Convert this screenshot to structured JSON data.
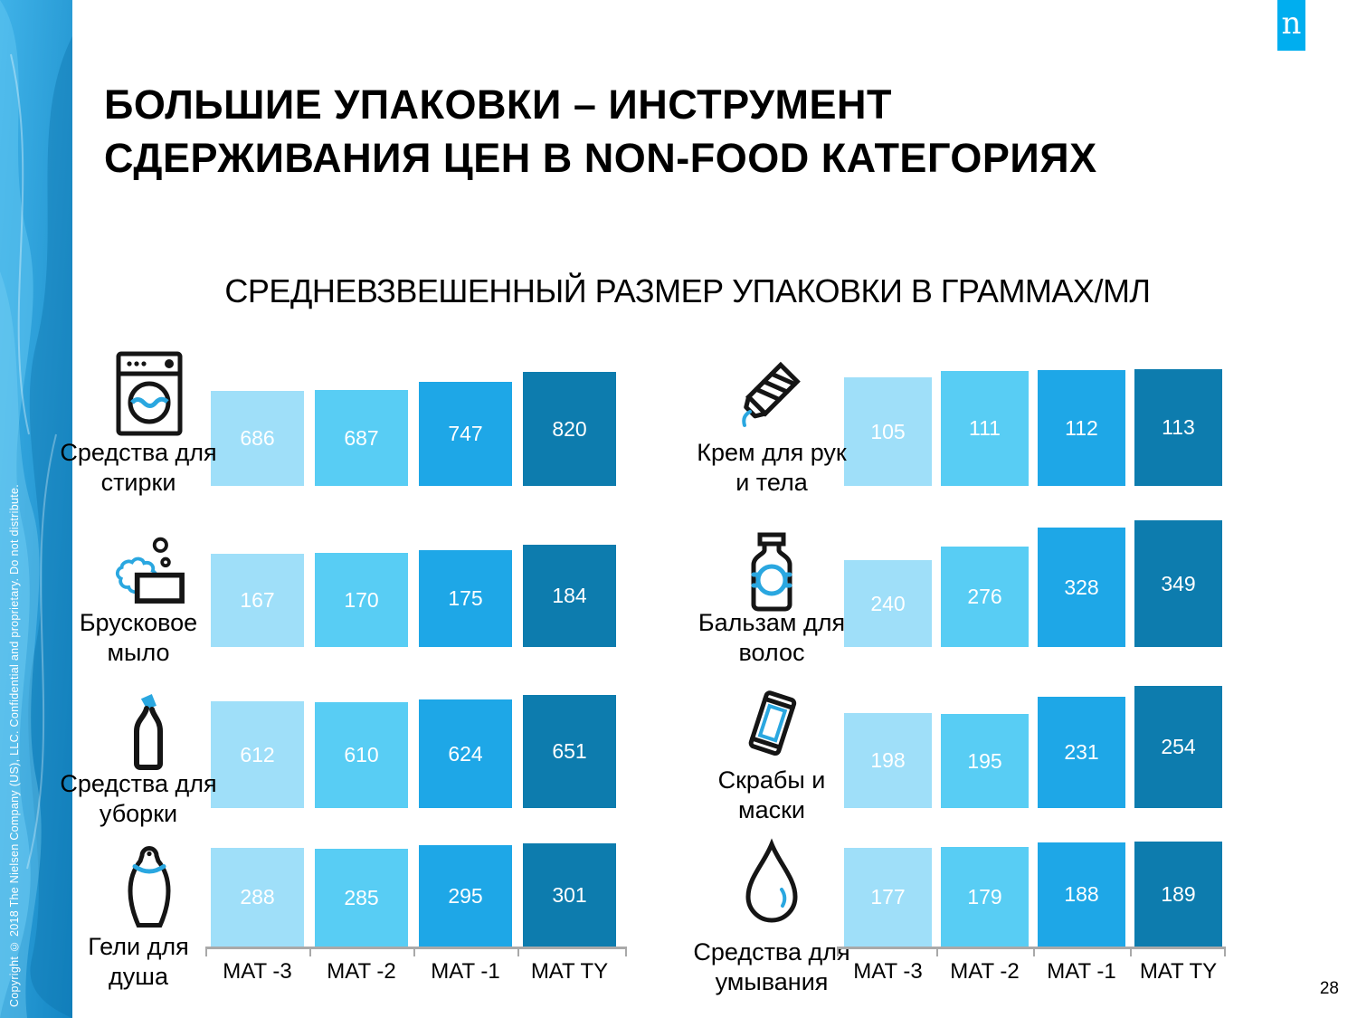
{
  "meta": {
    "logo_letter": "n",
    "page_number": "28",
    "copyright": "Copyright © 2018 The Nielsen Company (US), LLC. Confidential and proprietary. Do not distribute."
  },
  "title": {
    "line1": "БОЛЬШИЕ УПАКОВКИ – ИНСТРУМЕНТ",
    "line2": "СДЕРЖИВАНИЯ ЦЕН В NON-FOOD КАТЕГОРИЯХ"
  },
  "subtitle": "СРЕДНЕВЗВЕШЕННЫЙ РАЗМЕР УПАКОВКИ В ГРАММАХ/МЛ",
  "colors": {
    "bar_mat_minus3": "#9FDFF9",
    "bar_mat_minus2": "#58CDF4",
    "bar_mat_minus1": "#1EA7E7",
    "bar_mat_ty": "#0D7CAE",
    "bars": [
      "#9FDFF9",
      "#58CDF4",
      "#1EA7E7",
      "#0D7CAE"
    ],
    "icon_accent": "#2AA7E0",
    "icon_stroke": "#151515",
    "axis_gray": "#A9A9A9",
    "logo_blue": "#00AEEF",
    "sidebar_base": "#1E9CD6"
  },
  "chart_data": [
    {
      "type": "bar",
      "group": "left",
      "row": 0,
      "title": "Средства для стирки",
      "label_lines": [
        "Средства для",
        "стирки"
      ],
      "icon": "washing-machine",
      "categories": [
        "MAT -3",
        "MAT -2",
        "MAT -1",
        "MAT TY"
      ],
      "values": [
        686,
        687,
        747,
        820
      ],
      "bar_labels": "inside-white",
      "grid": false
    },
    {
      "type": "bar",
      "group": "left",
      "row": 1,
      "title": "Брусковое мыло",
      "label_lines": [
        "Брусковое",
        "мыло"
      ],
      "icon": "soap-bar",
      "categories": [
        "MAT -3",
        "MAT -2",
        "MAT -1",
        "MAT TY"
      ],
      "values": [
        167,
        170,
        175,
        184
      ],
      "bar_labels": "inside-white",
      "grid": false
    },
    {
      "type": "bar",
      "group": "left",
      "row": 2,
      "title": "Средства для уборки",
      "label_lines": [
        "Средства для",
        "уборки"
      ],
      "icon": "cleaning-bottle",
      "categories": [
        "MAT -3",
        "MAT -2",
        "MAT -1",
        "MAT TY"
      ],
      "values": [
        612,
        610,
        624,
        651
      ],
      "bar_labels": "inside-white",
      "grid": false
    },
    {
      "type": "bar",
      "group": "left",
      "row": 3,
      "title": "Гели для душа",
      "label_lines": [
        "Гели для",
        "душа"
      ],
      "icon": "shower-gel",
      "categories": [
        "MAT -3",
        "MAT -2",
        "MAT -1",
        "MAT TY"
      ],
      "values": [
        288,
        285,
        295,
        301
      ],
      "bar_labels": "inside-white",
      "grid": false
    },
    {
      "type": "bar",
      "group": "right",
      "row": 0,
      "title": "Крем для рук и тела",
      "label_lines": [
        "Крем для рук",
        "и тела"
      ],
      "icon": "cream-tube",
      "categories": [
        "MAT -3",
        "MAT -2",
        "MAT -1",
        "MAT TY"
      ],
      "values": [
        105,
        111,
        112,
        113
      ],
      "bar_labels": "inside-white",
      "grid": false
    },
    {
      "type": "bar",
      "group": "right",
      "row": 1,
      "title": "Бальзам для волос",
      "label_lines": [
        "Бальзам для",
        "волос"
      ],
      "icon": "balsam-bottle",
      "categories": [
        "MAT -3",
        "MAT -2",
        "MAT -1",
        "MAT TY"
      ],
      "values": [
        240,
        276,
        328,
        349
      ],
      "bar_labels": "inside-white",
      "grid": false
    },
    {
      "type": "bar",
      "group": "right",
      "row": 2,
      "title": "Скрабы и маски",
      "label_lines": [
        "Скрабы и",
        "маски"
      ],
      "icon": "scrub-tube",
      "categories": [
        "MAT -3",
        "MAT -2",
        "MAT -1",
        "MAT TY"
      ],
      "values": [
        198,
        195,
        231,
        254
      ],
      "bar_labels": "inside-white",
      "grid": false
    },
    {
      "type": "bar",
      "group": "right",
      "row": 3,
      "title": "Средства для умывания",
      "label_lines": [
        "Средства для",
        "умывания"
      ],
      "icon": "face-wash-drop",
      "categories": [
        "MAT -3",
        "MAT -2",
        "MAT -1",
        "MAT TY"
      ],
      "values": [
        177,
        179,
        188,
        189
      ],
      "bar_labels": "inside-white",
      "grid": false
    }
  ]
}
